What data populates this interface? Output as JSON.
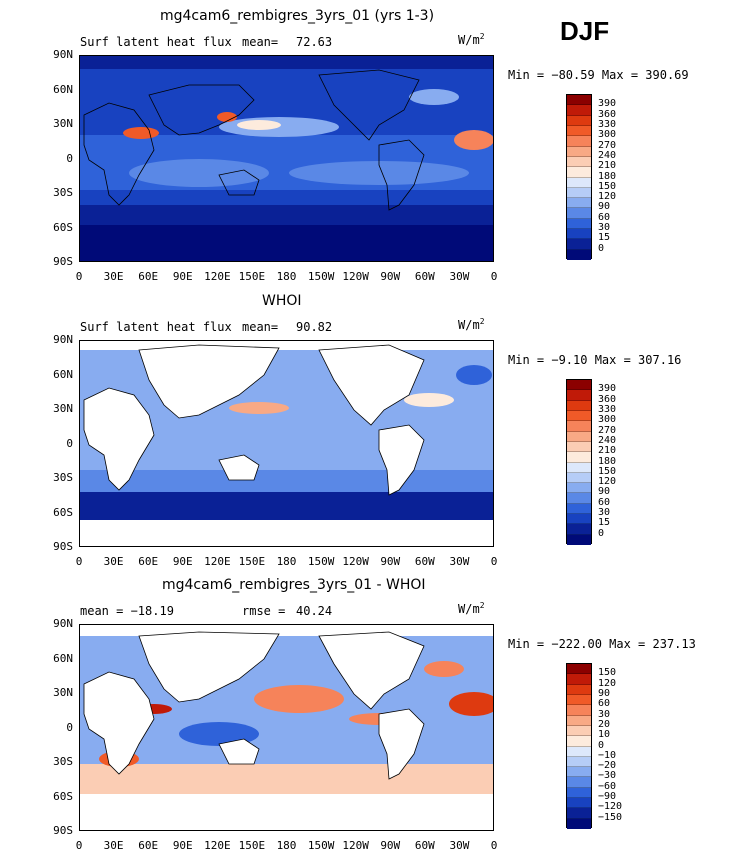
{
  "season": "DJF",
  "panels": [
    {
      "title": "mg4cam6_rembigres_3yrs_01 (yrs 1-3)",
      "left_label": "Surf latent heat flux",
      "stat_label": "mean=",
      "stat_value": "72.63",
      "units_main": "W/m",
      "units_sup": "2",
      "minmax": "Min = −80.59 Max = 390.69",
      "colorbar_labels": [
        "390",
        "360",
        "330",
        "300",
        "270",
        "240",
        "210",
        "180",
        "150",
        "120",
        "90",
        "60",
        "30",
        "15",
        "0"
      ]
    },
    {
      "title": "WHOI",
      "left_label": "Surf latent heat flux",
      "stat_label": "mean=",
      "stat_value": "90.82",
      "units_main": "W/m",
      "units_sup": "2",
      "minmax": "Min =  −9.10 Max = 307.16",
      "colorbar_labels": [
        "390",
        "360",
        "330",
        "300",
        "270",
        "240",
        "210",
        "180",
        "150",
        "120",
        "90",
        "60",
        "30",
        "15",
        "0"
      ]
    },
    {
      "title": "mg4cam6_rembigres_3yrs_01 - WHOI",
      "left_label": "mean = −18.19",
      "stat_label": "rmse =",
      "stat_value": "40.24",
      "units_main": "W/m",
      "units_sup": "2",
      "minmax": "Min = −222.00 Max = 237.13",
      "colorbar_labels": [
        "150",
        "120",
        "90",
        "60",
        "30",
        "20",
        "10",
        "0",
        "−10",
        "−20",
        "−30",
        "−60",
        "−90",
        "−120",
        "−150"
      ]
    }
  ],
  "lat_ticks": [
    "90N",
    "60N",
    "30N",
    "0",
    "30S",
    "60S",
    "90S"
  ],
  "lon_ticks": [
    "0",
    "30E",
    "60E",
    "90E",
    "120E",
    "150E",
    "180",
    "150W",
    "120W",
    "90W",
    "60W",
    "30W",
    "0"
  ],
  "abs_colors": [
    "#8b0000",
    "#c01a08",
    "#de3a10",
    "#f05a28",
    "#f6835a",
    "#f8a985",
    "#fbcdb4",
    "#fdebdd",
    "#dde8fb",
    "#b6cdf7",
    "#88acf0",
    "#5a88e6",
    "#2f62d9",
    "#1842c0",
    "#0a2196",
    "#000a78"
  ],
  "diff_colors": [
    "#8b0000",
    "#c01a08",
    "#de3a10",
    "#f05a28",
    "#f6835a",
    "#f8a985",
    "#fbcdb4",
    "#fdebdd",
    "#dde8fb",
    "#b6cdf7",
    "#88acf0",
    "#5a88e6",
    "#2f62d9",
    "#1842c0",
    "#0a2196",
    "#000a78"
  ]
}
